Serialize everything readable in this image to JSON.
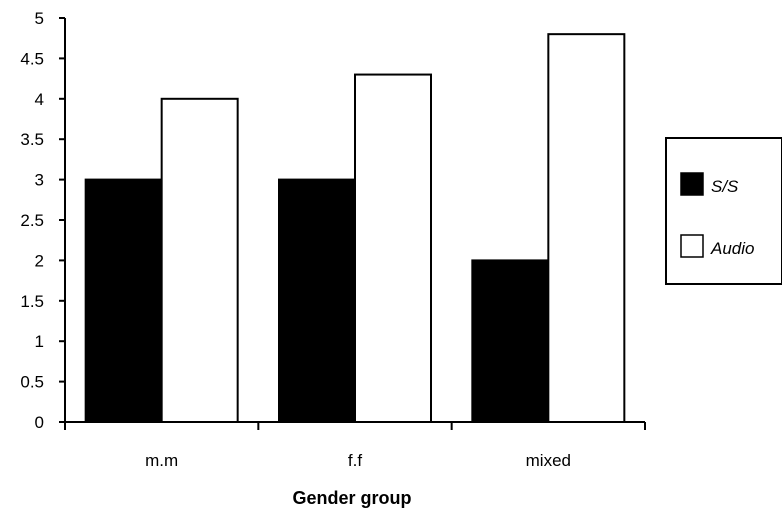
{
  "chart_data": {
    "type": "bar",
    "categories": [
      "m.m",
      "f.f",
      "mixed"
    ],
    "series": [
      {
        "name": "S/S",
        "values": [
          3,
          3,
          2
        ],
        "color": "#000000"
      },
      {
        "name": "Audio",
        "values": [
          4,
          4.3,
          4.8
        ],
        "color": "#ffffff"
      }
    ],
    "xlabel": "Gender group",
    "ylabel": "",
    "ylim": [
      0,
      5
    ],
    "yticks": [
      "0",
      "0.5",
      "1",
      "1.5",
      "2",
      "2.5",
      "3",
      "3.5",
      "4",
      "4.5",
      "5"
    ],
    "grid": false,
    "legend_position": "right"
  }
}
